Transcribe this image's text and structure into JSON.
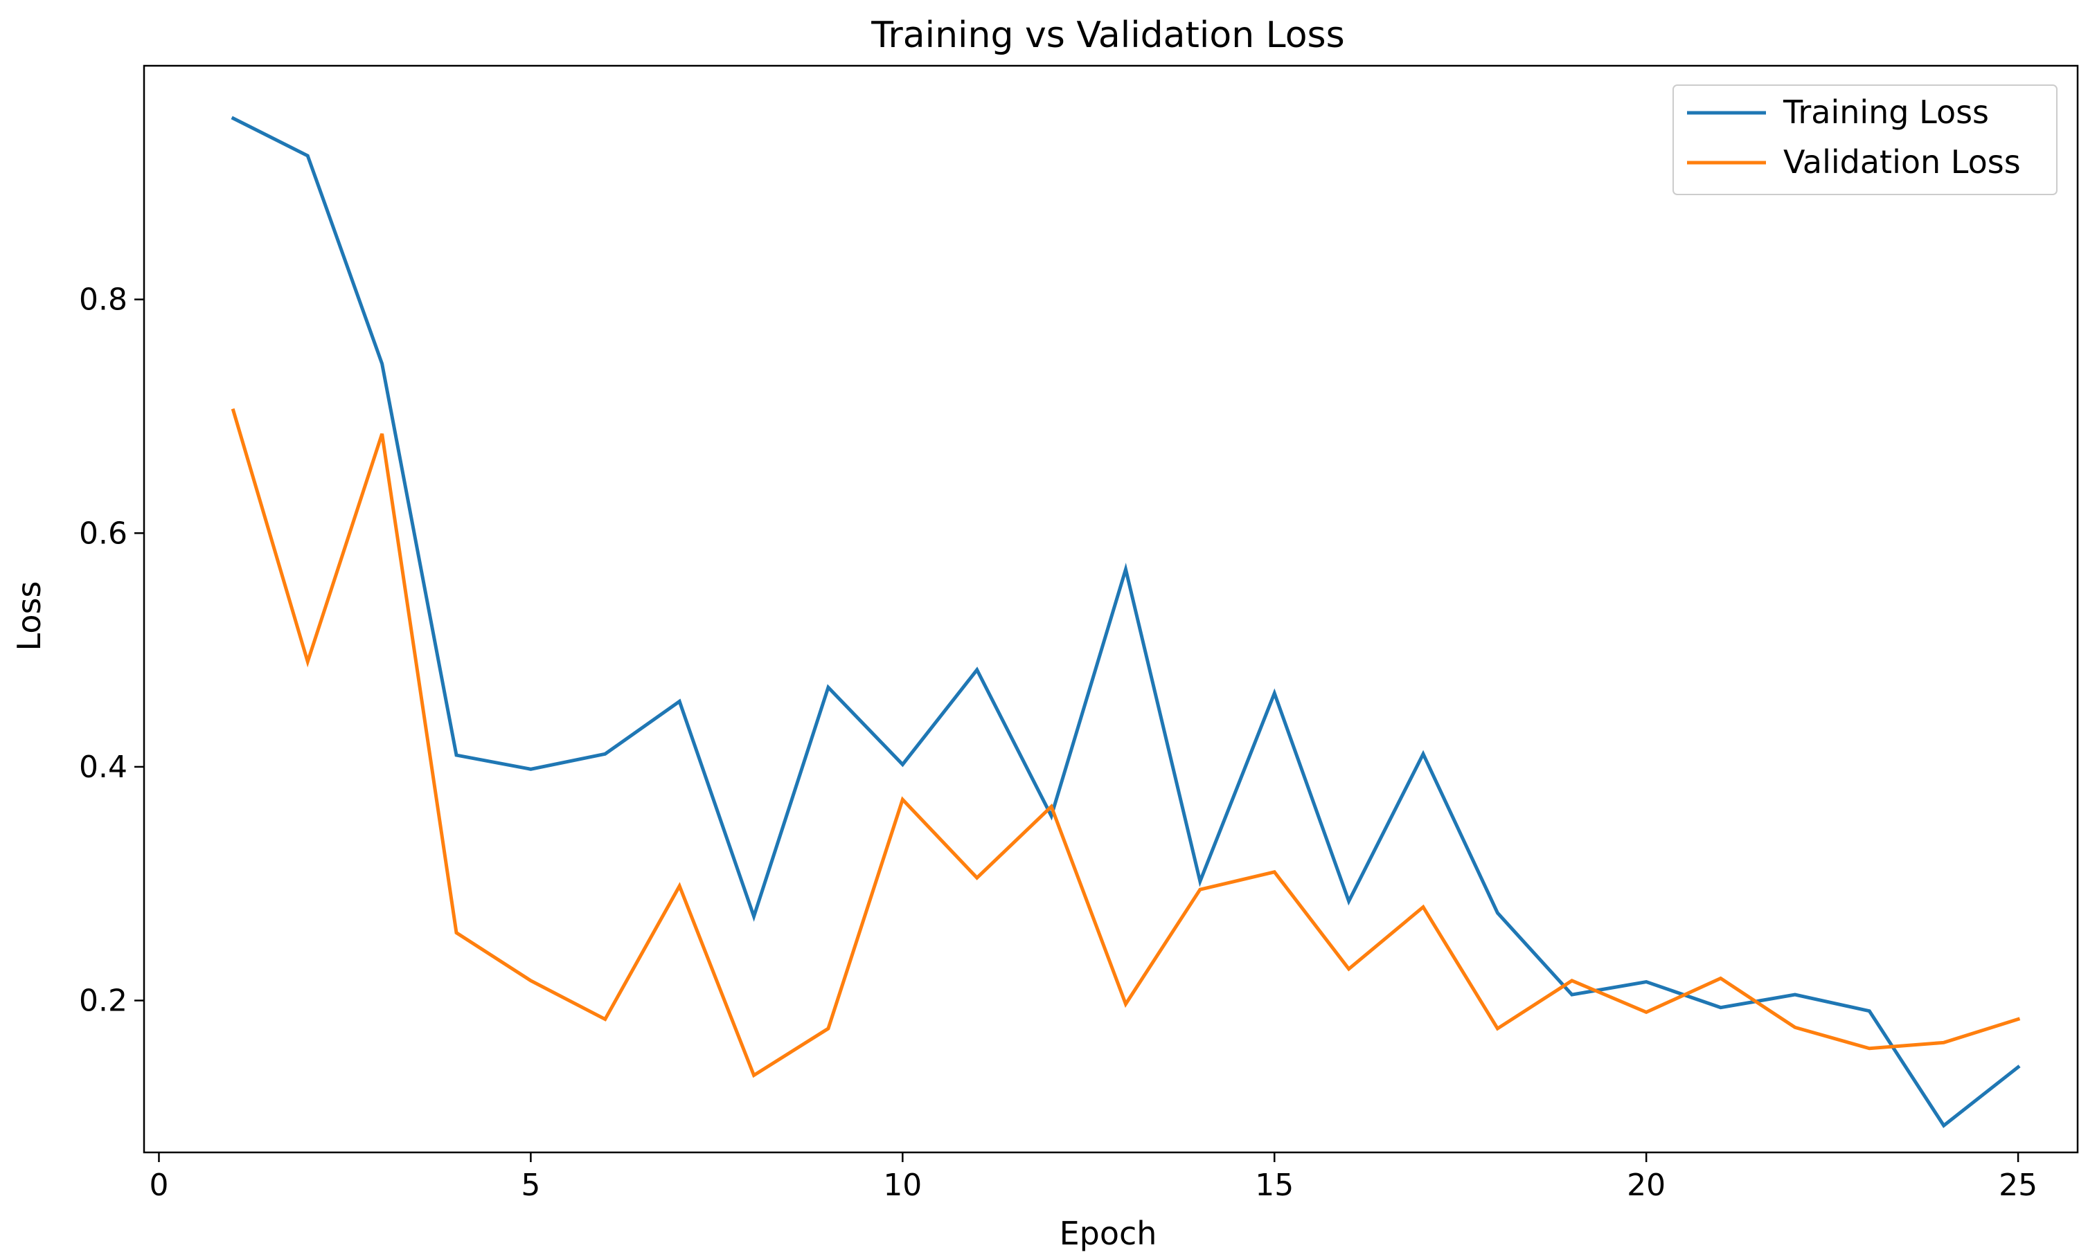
{
  "chart_data": {
    "type": "line",
    "title": "Training vs Validation Loss",
    "xlabel": "Epoch",
    "ylabel": "Loss",
    "xlim": [
      -0.2,
      25.8
    ],
    "ylim": [
      0.07,
      1.0
    ],
    "x_ticks": [
      0,
      5,
      10,
      15,
      20,
      25
    ],
    "y_ticks": [
      0.2,
      0.4,
      0.6,
      0.8
    ],
    "x_tick_labels": [
      "0",
      "5",
      "10",
      "15",
      "20",
      "25"
    ],
    "y_tick_labels": [
      "0.2",
      "0.4",
      "0.6",
      "0.8"
    ],
    "grid": false,
    "legend_position": "top-right",
    "x": [
      1,
      2,
      3,
      4,
      5,
      6,
      7,
      8,
      9,
      10,
      11,
      12,
      13,
      14,
      15,
      16,
      17,
      18,
      19,
      20,
      21,
      22,
      23,
      24,
      25
    ],
    "series": [
      {
        "name": "Training Loss",
        "color": "#1f77b4",
        "values": [
          0.955,
          0.923,
          0.745,
          0.41,
          0.398,
          0.411,
          0.456,
          0.272,
          0.468,
          0.402,
          0.483,
          0.358,
          0.569,
          0.302,
          0.463,
          0.285,
          0.411,
          0.275,
          0.205,
          0.216,
          0.194,
          0.205,
          0.191,
          0.093,
          0.143
        ]
      },
      {
        "name": "Validation Loss",
        "color": "#ff7f0e",
        "values": [
          0.705,
          0.49,
          0.685,
          0.258,
          0.217,
          0.184,
          0.298,
          0.136,
          0.176,
          0.372,
          0.305,
          0.366,
          0.197,
          0.295,
          0.31,
          0.227,
          0.28,
          0.176,
          0.217,
          0.19,
          0.219,
          0.177,
          0.159,
          0.164,
          0.184
        ]
      }
    ]
  }
}
